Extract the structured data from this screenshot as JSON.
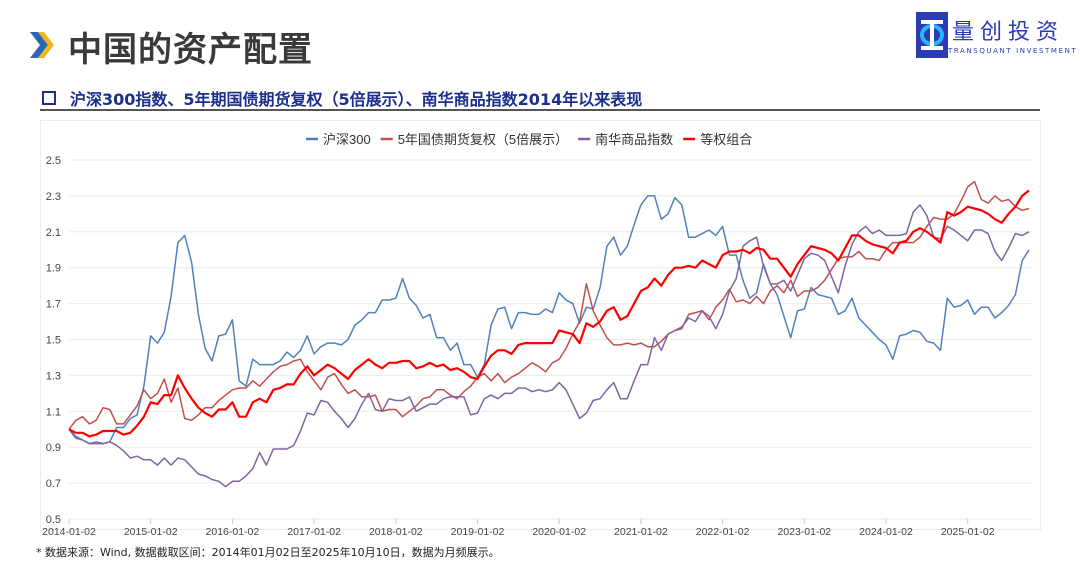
{
  "header": {
    "title": "中国的资产配置"
  },
  "logo": {
    "name_cn": "量创投资",
    "name_en": "TRANSQUANT INVESTMENT",
    "color": "#2b3bb3"
  },
  "section": {
    "subtitle": "沪深300指数、5年期国债期货复权（5倍展示）、南华商品指数2014年以来表现"
  },
  "footnote": "* 数据来源：Wind, 数据截取区间：2014年01月02日至2025年10月10日，数据为月频展示。",
  "chart_data": {
    "type": "line",
    "title": "",
    "xlabel": "",
    "ylabel": "",
    "ylim": [
      0.5,
      2.5
    ],
    "yticks": [
      "0.5",
      "0.7",
      "0.9",
      "1.1",
      "1.3",
      "1.5",
      "1.7",
      "1.9",
      "2.1",
      "2.3",
      "2.5"
    ],
    "xtick_labels": [
      "2014-01-02",
      "2015-01-02",
      "2016-01-02",
      "2017-01-02",
      "2018-01-02",
      "2019-01-02",
      "2020-01-02",
      "2021-01-02",
      "2022-01-02",
      "2023-01-02",
      "2024-01-02",
      "2025-01-02"
    ],
    "grid": "horizontal",
    "legend_position": "top",
    "x": [
      "2014-01",
      "2014-02",
      "2014-03",
      "2014-04",
      "2014-05",
      "2014-06",
      "2014-07",
      "2014-08",
      "2014-09",
      "2014-10",
      "2014-11",
      "2014-12",
      "2015-01",
      "2015-02",
      "2015-03",
      "2015-04",
      "2015-05",
      "2015-06",
      "2015-07",
      "2015-08",
      "2015-09",
      "2015-10",
      "2015-11",
      "2015-12",
      "2016-01",
      "2016-02",
      "2016-03",
      "2016-04",
      "2016-05",
      "2016-06",
      "2016-07",
      "2016-08",
      "2016-09",
      "2016-10",
      "2016-11",
      "2016-12",
      "2017-01",
      "2017-02",
      "2017-03",
      "2017-04",
      "2017-05",
      "2017-06",
      "2017-07",
      "2017-08",
      "2017-09",
      "2017-10",
      "2017-11",
      "2017-12",
      "2018-01",
      "2018-02",
      "2018-03",
      "2018-04",
      "2018-05",
      "2018-06",
      "2018-07",
      "2018-08",
      "2018-09",
      "2018-10",
      "2018-11",
      "2018-12",
      "2019-01",
      "2019-02",
      "2019-03",
      "2019-04",
      "2019-05",
      "2019-06",
      "2019-07",
      "2019-08",
      "2019-09",
      "2019-10",
      "2019-11",
      "2019-12",
      "2020-01",
      "2020-02",
      "2020-03",
      "2020-04",
      "2020-05",
      "2020-06",
      "2020-07",
      "2020-08",
      "2020-09",
      "2020-10",
      "2020-11",
      "2020-12",
      "2021-01",
      "2021-02",
      "2021-03",
      "2021-04",
      "2021-05",
      "2021-06",
      "2021-07",
      "2021-08",
      "2021-09",
      "2021-10",
      "2021-11",
      "2021-12",
      "2022-01",
      "2022-02",
      "2022-03",
      "2022-04",
      "2022-05",
      "2022-06",
      "2022-07",
      "2022-08",
      "2022-09",
      "2022-10",
      "2022-11",
      "2022-12",
      "2023-01",
      "2023-02",
      "2023-03",
      "2023-04",
      "2023-05",
      "2023-06",
      "2023-07",
      "2023-08",
      "2023-09",
      "2023-10",
      "2023-11",
      "2023-12",
      "2024-01",
      "2024-02",
      "2024-03",
      "2024-04",
      "2024-05",
      "2024-06",
      "2024-07",
      "2024-08",
      "2024-09",
      "2024-10",
      "2024-11",
      "2024-12",
      "2025-01",
      "2025-02",
      "2025-03",
      "2025-04",
      "2025-05",
      "2025-06",
      "2025-07",
      "2025-08",
      "2025-09",
      "2025-10"
    ],
    "series": [
      {
        "name": "沪深300",
        "color": "#4f81bd",
        "width": 1.5,
        "values": [
          1.0,
          0.95,
          0.94,
          0.92,
          0.93,
          0.92,
          0.93,
          1.01,
          1.01,
          1.06,
          1.08,
          1.24,
          1.52,
          1.48,
          1.54,
          1.74,
          2.04,
          2.08,
          1.93,
          1.64,
          1.45,
          1.38,
          1.52,
          1.53,
          1.61,
          1.27,
          1.24,
          1.39,
          1.36,
          1.36,
          1.36,
          1.38,
          1.43,
          1.4,
          1.44,
          1.52,
          1.42,
          1.46,
          1.48,
          1.48,
          1.47,
          1.5,
          1.58,
          1.61,
          1.65,
          1.65,
          1.72,
          1.72,
          1.73,
          1.84,
          1.73,
          1.69,
          1.62,
          1.64,
          1.51,
          1.51,
          1.44,
          1.48,
          1.36,
          1.36,
          1.29,
          1.36,
          1.58,
          1.67,
          1.68,
          1.56,
          1.65,
          1.65,
          1.64,
          1.64,
          1.67,
          1.65,
          1.76,
          1.72,
          1.7,
          1.59,
          1.68,
          1.67,
          1.79,
          2.02,
          2.07,
          1.97,
          2.02,
          2.14,
          2.25,
          2.3,
          2.3,
          2.17,
          2.2,
          2.29,
          2.25,
          2.07,
          2.07,
          2.09,
          2.11,
          2.08,
          2.13,
          1.97,
          1.97,
          1.83,
          1.73,
          1.76,
          1.92,
          1.81,
          1.75,
          1.63,
          1.51,
          1.66,
          1.67,
          1.79,
          1.75,
          1.74,
          1.73,
          1.64,
          1.66,
          1.73,
          1.62,
          1.58,
          1.54,
          1.5,
          1.47,
          1.39,
          1.52,
          1.53,
          1.55,
          1.54,
          1.49,
          1.48,
          1.44,
          1.73,
          1.68,
          1.69,
          1.72,
          1.64,
          1.68,
          1.68,
          1.62,
          1.65,
          1.69,
          1.75,
          1.94,
          2.0
        ]
      },
      {
        "name": "5年国债期货复权（5倍展示）",
        "color": "#c0504d",
        "width": 1.5,
        "values": [
          1.0,
          1.05,
          1.07,
          1.03,
          1.05,
          1.12,
          1.11,
          1.03,
          1.03,
          1.08,
          1.13,
          1.22,
          1.17,
          1.2,
          1.28,
          1.15,
          1.23,
          1.06,
          1.05,
          1.08,
          1.12,
          1.12,
          1.16,
          1.19,
          1.22,
          1.23,
          1.23,
          1.27,
          1.24,
          1.28,
          1.32,
          1.35,
          1.36,
          1.38,
          1.39,
          1.32,
          1.27,
          1.22,
          1.29,
          1.31,
          1.25,
          1.2,
          1.22,
          1.18,
          1.18,
          1.19,
          1.1,
          1.11,
          1.11,
          1.07,
          1.1,
          1.13,
          1.17,
          1.18,
          1.22,
          1.22,
          1.19,
          1.17,
          1.21,
          1.24,
          1.29,
          1.31,
          1.27,
          1.31,
          1.26,
          1.29,
          1.31,
          1.34,
          1.37,
          1.35,
          1.32,
          1.37,
          1.39,
          1.45,
          1.53,
          1.6,
          1.81,
          1.66,
          1.58,
          1.51,
          1.47,
          1.47,
          1.48,
          1.47,
          1.48,
          1.46,
          1.46,
          1.49,
          1.53,
          1.55,
          1.56,
          1.64,
          1.65,
          1.66,
          1.61,
          1.68,
          1.72,
          1.78,
          1.71,
          1.72,
          1.7,
          1.74,
          1.7,
          1.77,
          1.8,
          1.76,
          1.83,
          1.74,
          1.77,
          1.77,
          1.79,
          1.83,
          1.89,
          1.95,
          1.96,
          1.96,
          1.99,
          1.95,
          1.95,
          1.94,
          2.0,
          2.04,
          2.04,
          2.04,
          2.04,
          2.07,
          2.13,
          2.18,
          2.17,
          2.17,
          2.2,
          2.27,
          2.35,
          2.38,
          2.28,
          2.26,
          2.3,
          2.27,
          2.28,
          2.24,
          2.22,
          2.23
        ]
      },
      {
        "name": "南华商品指数",
        "color": "#8064a2",
        "width": 1.5,
        "values": [
          1.0,
          0.96,
          0.94,
          0.92,
          0.92,
          0.92,
          0.93,
          0.91,
          0.88,
          0.84,
          0.85,
          0.83,
          0.83,
          0.8,
          0.84,
          0.8,
          0.84,
          0.83,
          0.79,
          0.75,
          0.74,
          0.72,
          0.71,
          0.68,
          0.71,
          0.71,
          0.74,
          0.78,
          0.87,
          0.8,
          0.89,
          0.89,
          0.89,
          0.91,
          0.99,
          1.09,
          1.08,
          1.16,
          1.15,
          1.1,
          1.06,
          1.01,
          1.06,
          1.14,
          1.2,
          1.11,
          1.1,
          1.17,
          1.16,
          1.16,
          1.18,
          1.1,
          1.12,
          1.14,
          1.14,
          1.17,
          1.18,
          1.18,
          1.18,
          1.08,
          1.09,
          1.17,
          1.19,
          1.17,
          1.2,
          1.2,
          1.23,
          1.23,
          1.21,
          1.22,
          1.21,
          1.22,
          1.26,
          1.22,
          1.14,
          1.06,
          1.09,
          1.16,
          1.17,
          1.22,
          1.26,
          1.17,
          1.17,
          1.27,
          1.36,
          1.36,
          1.51,
          1.44,
          1.53,
          1.55,
          1.57,
          1.62,
          1.6,
          1.66,
          1.63,
          1.56,
          1.64,
          1.77,
          1.84,
          2.02,
          2.05,
          2.07,
          1.91,
          1.81,
          1.81,
          1.83,
          1.77,
          1.86,
          1.95,
          1.98,
          1.97,
          1.94,
          1.85,
          1.76,
          1.91,
          2.03,
          2.1,
          2.13,
          2.09,
          2.11,
          2.08,
          2.08,
          2.08,
          2.09,
          2.21,
          2.25,
          2.19,
          2.07,
          2.06,
          2.13,
          2.11,
          2.08,
          2.05,
          2.11,
          2.11,
          2.09,
          1.99,
          1.94,
          2.01,
          2.09,
          2.08,
          2.1
        ]
      },
      {
        "name": "等权组合",
        "color": "#ff0000",
        "width": 2.2,
        "values": [
          1.0,
          0.98,
          0.98,
          0.96,
          0.97,
          0.99,
          0.99,
          0.99,
          0.97,
          0.98,
          1.02,
          1.07,
          1.15,
          1.14,
          1.19,
          1.19,
          1.3,
          1.23,
          1.17,
          1.12,
          1.09,
          1.07,
          1.11,
          1.11,
          1.15,
          1.07,
          1.07,
          1.15,
          1.17,
          1.15,
          1.22,
          1.23,
          1.25,
          1.25,
          1.31,
          1.35,
          1.3,
          1.33,
          1.36,
          1.34,
          1.31,
          1.28,
          1.33,
          1.36,
          1.39,
          1.36,
          1.34,
          1.37,
          1.37,
          1.38,
          1.38,
          1.34,
          1.35,
          1.37,
          1.35,
          1.36,
          1.33,
          1.34,
          1.32,
          1.29,
          1.28,
          1.35,
          1.41,
          1.44,
          1.44,
          1.42,
          1.47,
          1.48,
          1.48,
          1.48,
          1.48,
          1.48,
          1.55,
          1.54,
          1.53,
          1.48,
          1.59,
          1.57,
          1.6,
          1.66,
          1.68,
          1.61,
          1.63,
          1.7,
          1.77,
          1.79,
          1.84,
          1.8,
          1.86,
          1.9,
          1.9,
          1.91,
          1.9,
          1.94,
          1.92,
          1.9,
          1.97,
          1.99,
          1.99,
          2.0,
          1.98,
          2.01,
          2.0,
          1.95,
          1.95,
          1.9,
          1.85,
          1.92,
          1.97,
          2.02,
          2.01,
          2.0,
          1.98,
          1.94,
          2.01,
          2.08,
          2.08,
          2.05,
          2.03,
          2.02,
          2.01,
          1.98,
          2.04,
          2.05,
          2.1,
          2.12,
          2.1,
          2.07,
          2.04,
          2.21,
          2.19,
          2.21,
          2.24,
          2.23,
          2.22,
          2.2,
          2.17,
          2.15,
          2.2,
          2.24,
          2.3,
          2.33
        ]
      }
    ]
  }
}
